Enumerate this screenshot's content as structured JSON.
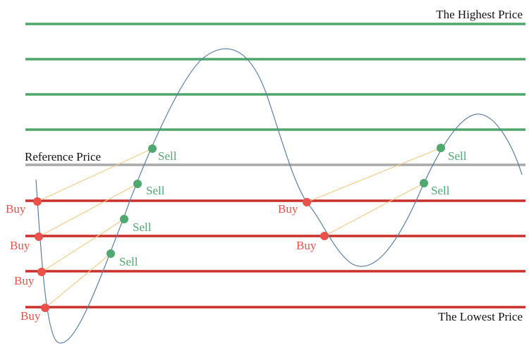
{
  "labels": {
    "highest": "The Highest Price",
    "lowest": "The Lowest Price",
    "reference": "Reference Price"
  },
  "colors": {
    "upper_grid": "#4ea66a",
    "reference": "#a9a9a9",
    "lower_grid": "#c9302c",
    "price_curve": "#5b7fa6",
    "buy": "#e8524a",
    "sell": "#4fa870",
    "link": "#f5c983",
    "text": "#111111"
  },
  "trades": [
    {
      "buy": {
        "label": "Buy"
      },
      "sell": {
        "label": "Sell"
      }
    },
    {
      "buy": {
        "label": "Buy"
      },
      "sell": {
        "label": "Sell"
      }
    },
    {
      "buy": {
        "label": "Buy"
      },
      "sell": {
        "label": "Sell"
      }
    },
    {
      "buy": {
        "label": "Buy"
      },
      "sell": {
        "label": "Sell"
      }
    },
    {
      "buy": {
        "label": "Buy"
      },
      "sell": {
        "label": "Sell"
      }
    },
    {
      "buy": {
        "label": "Buy"
      },
      "sell": {
        "label": "Sell"
      }
    }
  ]
}
